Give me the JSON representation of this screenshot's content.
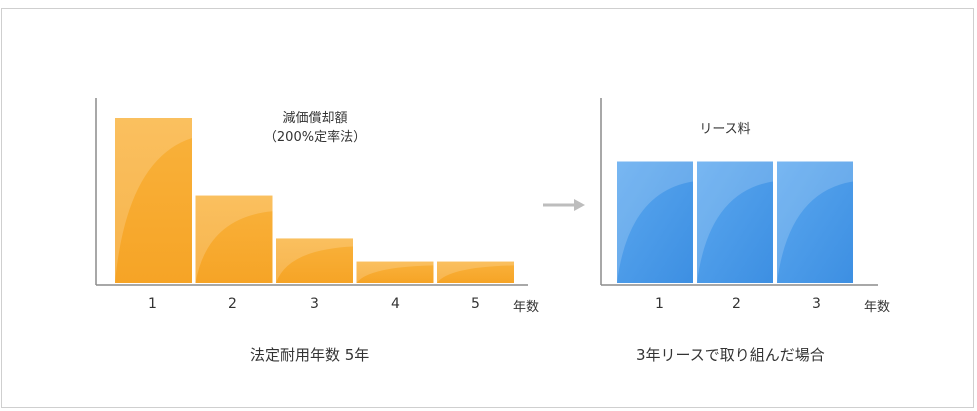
{
  "chart_data": [
    {
      "type": "bar",
      "categories": [
        "1",
        "2",
        "3",
        "4",
        "5"
      ],
      "values": [
        100,
        53,
        27,
        13,
        13
      ],
      "annotation_line1": "減価償却額",
      "annotation_line2": "（200%定率法）",
      "xunit": "年数",
      "caption": "法定耐用年数 5年",
      "color": "#f7a830"
    },
    {
      "type": "bar",
      "categories": [
        "1",
        "2",
        "3"
      ],
      "values": [
        75,
        75,
        75
      ],
      "annotation_line1": "リース料",
      "xunit": "年数",
      "caption": "3年リースで取り組んだ場合",
      "color": "#4a9be8"
    }
  ],
  "arrow_color": "#bdbdbd"
}
